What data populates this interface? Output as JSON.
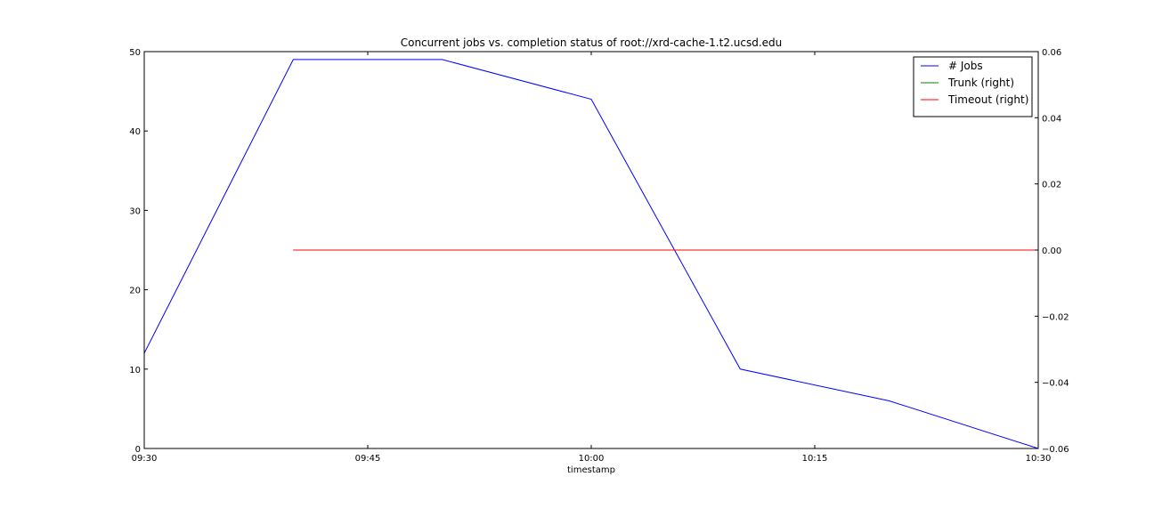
{
  "chart_data": {
    "type": "line",
    "title": "Concurrent jobs vs. completion status of root://xrd-cache-1.t2.ucsd.edu",
    "xlabel": "timestamp",
    "ylabel": "",
    "ylabel_right": "",
    "x_ticks": [
      "09:30",
      "09:45",
      "10:00",
      "10:15",
      "10:30"
    ],
    "xlim": [
      "09:30",
      "10:30"
    ],
    "ylim": [
      0,
      50
    ],
    "y_ticks": [
      "0",
      "10",
      "20",
      "30",
      "40",
      "50"
    ],
    "ylim_right": [
      -0.06,
      0.06
    ],
    "y_ticks_right": [
      "−0.06",
      "−0.04",
      "−0.02",
      "0.00",
      "0.02",
      "0.04",
      "0.06"
    ],
    "grid": false,
    "legend_position": "top-right",
    "series": [
      {
        "name": "# Jobs",
        "axis": "left",
        "color": "#0000ff",
        "points": [
          {
            "x": "09:30",
            "y": 12
          },
          {
            "x": "09:40",
            "y": 49
          },
          {
            "x": "09:50",
            "y": 49
          },
          {
            "x": "10:00",
            "y": 44
          },
          {
            "x": "10:10",
            "y": 10
          },
          {
            "x": "10:20",
            "y": 6
          },
          {
            "x": "10:30",
            "y": 0
          }
        ]
      },
      {
        "name": "Trunk (right)",
        "axis": "right",
        "color": "#008000",
        "points": [
          {
            "x": "09:40",
            "y": 0
          },
          {
            "x": "10:30",
            "y": 0
          }
        ]
      },
      {
        "name": "Timeout (right)",
        "axis": "right",
        "color": "#ff0000",
        "points": [
          {
            "x": "09:40",
            "y": 0
          },
          {
            "x": "10:30",
            "y": 0
          }
        ]
      }
    ]
  }
}
